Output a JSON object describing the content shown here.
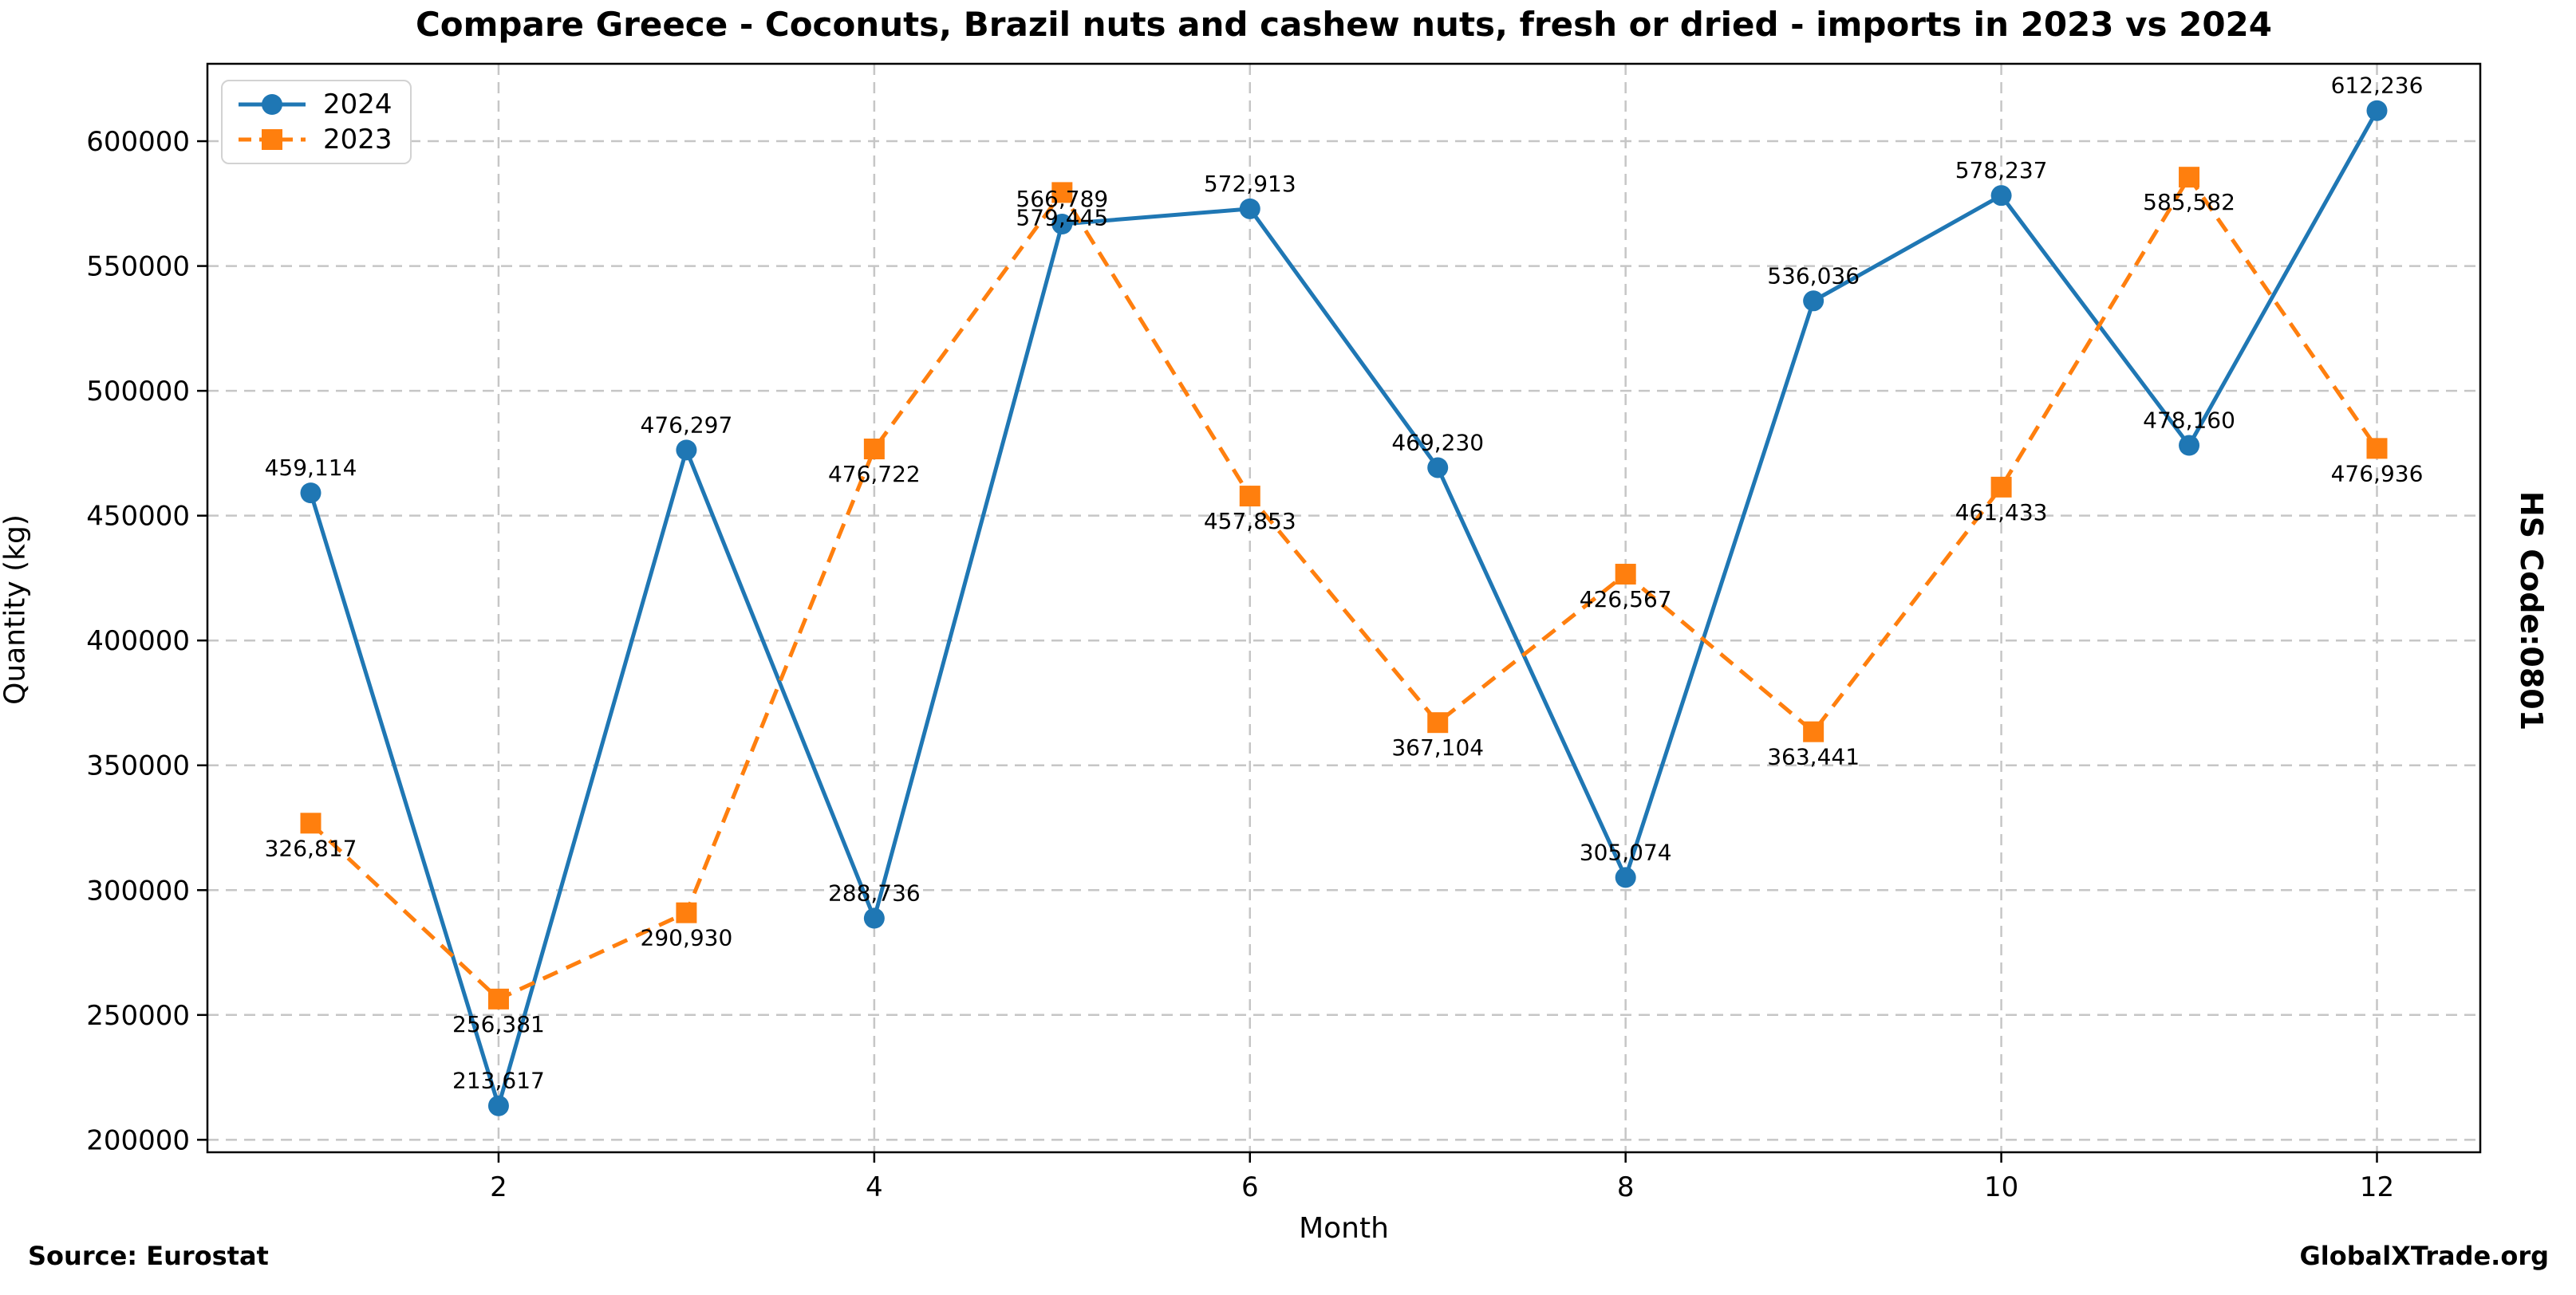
{
  "figure": {
    "source_note": "Source: Eurostat",
    "brand": "GlobalXTrade.org",
    "side_label": "HS Code:0801"
  },
  "chart_data": {
    "type": "line",
    "title": "Compare Greece - Coconuts, Brazil nuts and cashew nuts, fresh or dried - imports in 2023 vs 2024",
    "xlabel": "Month",
    "ylabel": "Quantity (kg)",
    "x": [
      1,
      2,
      3,
      4,
      5,
      6,
      7,
      8,
      9,
      10,
      11,
      12
    ],
    "xticks": [
      2,
      4,
      6,
      8,
      10,
      12
    ],
    "yticks": [
      200000,
      250000,
      300000,
      350000,
      400000,
      450000,
      500000,
      550000,
      600000
    ],
    "xlim": [
      0.45,
      12.55
    ],
    "ylim": [
      195000,
      631000
    ],
    "grid": true,
    "legend_position": "upper-left",
    "series": [
      {
        "name": "2024",
        "color": "#1f77b4",
        "line": "solid",
        "marker": "circle",
        "label_placement": "above",
        "values": [
          459114,
          213617,
          476297,
          288736,
          566789,
          572913,
          469230,
          305074,
          536036,
          578237,
          478160,
          612236
        ]
      },
      {
        "name": "2023",
        "color": "#ff7f0e",
        "line": "dashed",
        "marker": "square",
        "label_placement": "below",
        "values": [
          326817,
          256381,
          290930,
          476722,
          579445,
          457853,
          367104,
          426567,
          363441,
          461433,
          585582,
          476936
        ]
      }
    ]
  }
}
